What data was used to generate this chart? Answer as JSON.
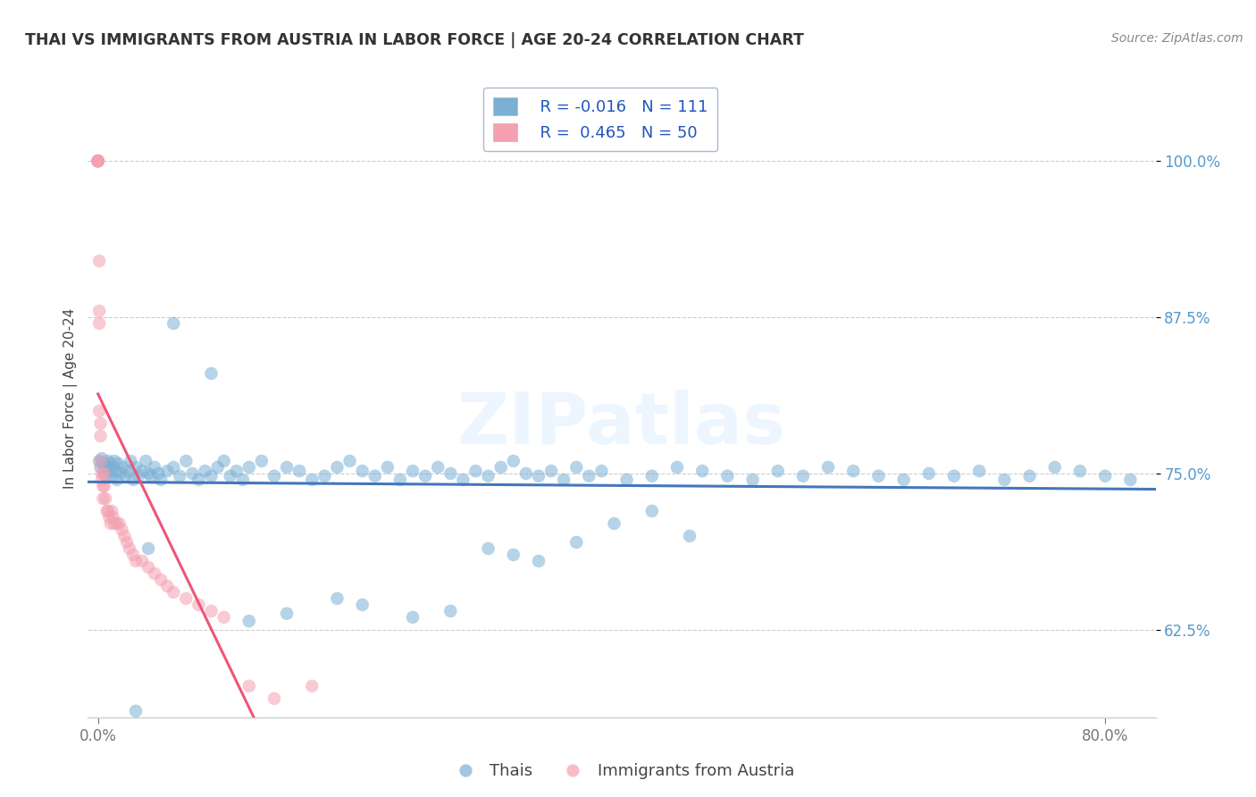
{
  "title": "THAI VS IMMIGRANTS FROM AUSTRIA IN LABOR FORCE | AGE 20-24 CORRELATION CHART",
  "source_text": "Source: ZipAtlas.com",
  "ylabel": "In Labor Force | Age 20-24",
  "xlim": [
    -0.008,
    0.84
  ],
  "ylim": [
    0.555,
    1.065
  ],
  "y_ticks": [
    0.625,
    0.75,
    0.875,
    1.0
  ],
  "y_tick_labels": [
    "62.5%",
    "75.0%",
    "87.5%",
    "100.0%"
  ],
  "x_ticks": [
    0.0,
    0.8
  ],
  "x_tick_labels": [
    "0.0%",
    "80.0%"
  ],
  "legend_r1": "-0.016",
  "legend_n1": "111",
  "legend_r2": "0.465",
  "legend_n2": "50",
  "blue_color": "#7BAFD4",
  "pink_color": "#F4A0B0",
  "title_color": "#333333",
  "source_color": "#888888",
  "trend_blue": "#4477BB",
  "trend_pink": "#EE5577",
  "watermark": "ZIPatlas",
  "background_color": "#FFFFFF",
  "tick_color": "#5599CC",
  "bottom_tick_color": "#777777",
  "thais_x": [
    0.001,
    0.002,
    0.003,
    0.004,
    0.005,
    0.006,
    0.007,
    0.008,
    0.009,
    0.01,
    0.011,
    0.012,
    0.013,
    0.014,
    0.015,
    0.016,
    0.018,
    0.02,
    0.022,
    0.024,
    0.026,
    0.028,
    0.03,
    0.032,
    0.035,
    0.038,
    0.04,
    0.042,
    0.045,
    0.048,
    0.05,
    0.055,
    0.06,
    0.065,
    0.07,
    0.075,
    0.08,
    0.085,
    0.09,
    0.095,
    0.1,
    0.105,
    0.11,
    0.115,
    0.12,
    0.13,
    0.14,
    0.15,
    0.16,
    0.17,
    0.18,
    0.19,
    0.2,
    0.21,
    0.22,
    0.23,
    0.24,
    0.25,
    0.26,
    0.27,
    0.28,
    0.29,
    0.3,
    0.31,
    0.32,
    0.33,
    0.34,
    0.35,
    0.36,
    0.37,
    0.38,
    0.39,
    0.4,
    0.42,
    0.44,
    0.46,
    0.48,
    0.5,
    0.52,
    0.54,
    0.56,
    0.58,
    0.6,
    0.62,
    0.64,
    0.66,
    0.68,
    0.7,
    0.72,
    0.74,
    0.76,
    0.78,
    0.8,
    0.82,
    0.35,
    0.38,
    0.41,
    0.44,
    0.47,
    0.31,
    0.33,
    0.25,
    0.28,
    0.19,
    0.21,
    0.15,
    0.12,
    0.09,
    0.06,
    0.04,
    0.03
  ],
  "thais_y": [
    0.76,
    0.755,
    0.762,
    0.758,
    0.75,
    0.748,
    0.755,
    0.76,
    0.752,
    0.758,
    0.748,
    0.755,
    0.76,
    0.752,
    0.745,
    0.758,
    0.75,
    0.755,
    0.748,
    0.752,
    0.76,
    0.745,
    0.755,
    0.748,
    0.752,
    0.76,
    0.75,
    0.748,
    0.755,
    0.75,
    0.745,
    0.752,
    0.755,
    0.748,
    0.76,
    0.75,
    0.745,
    0.752,
    0.748,
    0.755,
    0.76,
    0.748,
    0.752,
    0.745,
    0.755,
    0.76,
    0.748,
    0.755,
    0.752,
    0.745,
    0.748,
    0.755,
    0.76,
    0.752,
    0.748,
    0.755,
    0.745,
    0.752,
    0.748,
    0.755,
    0.75,
    0.745,
    0.752,
    0.748,
    0.755,
    0.76,
    0.75,
    0.748,
    0.752,
    0.745,
    0.755,
    0.748,
    0.752,
    0.745,
    0.748,
    0.755,
    0.752,
    0.748,
    0.745,
    0.752,
    0.748,
    0.755,
    0.752,
    0.748,
    0.745,
    0.75,
    0.748,
    0.752,
    0.745,
    0.748,
    0.755,
    0.752,
    0.748,
    0.745,
    0.68,
    0.695,
    0.71,
    0.72,
    0.7,
    0.69,
    0.685,
    0.635,
    0.64,
    0.65,
    0.645,
    0.638,
    0.632,
    0.83,
    0.87,
    0.69,
    0.56
  ],
  "austria_x": [
    0.0,
    0.0,
    0.0,
    0.0,
    0.0,
    0.0,
    0.0,
    0.0,
    0.001,
    0.001,
    0.001,
    0.001,
    0.002,
    0.002,
    0.002,
    0.003,
    0.003,
    0.004,
    0.004,
    0.005,
    0.005,
    0.006,
    0.007,
    0.008,
    0.009,
    0.01,
    0.011,
    0.012,
    0.013,
    0.015,
    0.017,
    0.019,
    0.021,
    0.023,
    0.025,
    0.028,
    0.03,
    0.035,
    0.04,
    0.045,
    0.05,
    0.055,
    0.06,
    0.07,
    0.08,
    0.09,
    0.1,
    0.12,
    0.14,
    0.17
  ],
  "austria_y": [
    1.0,
    1.0,
    1.0,
    1.0,
    1.0,
    1.0,
    1.0,
    1.0,
    0.92,
    0.88,
    0.87,
    0.8,
    0.79,
    0.78,
    0.76,
    0.75,
    0.745,
    0.74,
    0.73,
    0.75,
    0.74,
    0.73,
    0.72,
    0.72,
    0.715,
    0.71,
    0.72,
    0.715,
    0.71,
    0.71,
    0.71,
    0.705,
    0.7,
    0.695,
    0.69,
    0.685,
    0.68,
    0.68,
    0.675,
    0.67,
    0.665,
    0.66,
    0.655,
    0.65,
    0.645,
    0.64,
    0.635,
    0.58,
    0.57,
    0.58
  ]
}
